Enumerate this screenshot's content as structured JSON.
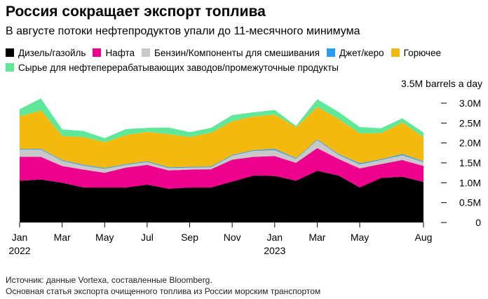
{
  "header": {
    "title": "Россия сокращает экспорт топлива",
    "subtitle": "В августе потоки нефтепродуктов упали до 11-месячного минимума"
  },
  "footer": {
    "source": "Источник: данные Vortexa, составленные Bloomberg.",
    "note": "Основная статья экспорта очищенного топлива из России морским транспортом"
  },
  "chart_data": {
    "type": "area",
    "stacked": true,
    "unit_label": "3.5M barrels a day",
    "x": [
      "2022-01",
      "2022-02",
      "2022-03",
      "2022-04",
      "2022-05",
      "2022-06",
      "2022-07",
      "2022-08",
      "2022-09",
      "2022-10",
      "2022-11",
      "2022-12",
      "2023-01",
      "2023-02",
      "2023-03",
      "2023-04",
      "2023-05",
      "2023-06",
      "2023-07",
      "2023-08"
    ],
    "x_ticks": [
      {
        "index": 0,
        "label": "Jan",
        "sub": "2022"
      },
      {
        "index": 2,
        "label": "Mar",
        "sub": ""
      },
      {
        "index": 4,
        "label": "May",
        "sub": ""
      },
      {
        "index": 6,
        "label": "Jul",
        "sub": ""
      },
      {
        "index": 8,
        "label": "Sep",
        "sub": ""
      },
      {
        "index": 10,
        "label": "Nov",
        "sub": ""
      },
      {
        "index": 12,
        "label": "Jan",
        "sub": "2023"
      },
      {
        "index": 14,
        "label": "Mar",
        "sub": ""
      },
      {
        "index": 16,
        "label": "May",
        "sub": ""
      },
      {
        "index": 19,
        "label": "Aug",
        "sub": ""
      }
    ],
    "y_ticks": [
      {
        "value": 0,
        "label": "0"
      },
      {
        "value": 0.5,
        "label": "0.5M"
      },
      {
        "value": 1.0,
        "label": "1.0M"
      },
      {
        "value": 1.5,
        "label": "1.5M"
      },
      {
        "value": 2.0,
        "label": "2.0M"
      },
      {
        "value": 2.5,
        "label": "2.5M"
      },
      {
        "value": 3.0,
        "label": "3.0M"
      }
    ],
    "ylim": [
      0,
      3.5
    ],
    "grid": false,
    "legend_position": "top",
    "series": [
      {
        "name": "Дизель/газойль",
        "color": "#000000",
        "values": [
          1.05,
          1.08,
          1.0,
          0.88,
          0.88,
          0.88,
          0.95,
          0.85,
          0.88,
          0.88,
          1.03,
          1.18,
          1.17,
          1.05,
          1.3,
          1.18,
          0.88,
          1.12,
          1.15,
          1.02
        ]
      },
      {
        "name": "Нафта",
        "color": "#ec008c",
        "values": [
          0.6,
          0.57,
          0.42,
          0.45,
          0.37,
          0.5,
          0.5,
          0.46,
          0.45,
          0.46,
          0.55,
          0.47,
          0.5,
          0.45,
          0.57,
          0.42,
          0.48,
          0.35,
          0.42,
          0.4
        ]
      },
      {
        "name": "Бензин/Компоненты для смешивания",
        "color": "#c8c8c8",
        "values": [
          0.18,
          0.18,
          0.13,
          0.1,
          0.1,
          0.07,
          0.07,
          0.06,
          0.05,
          0.05,
          0.1,
          0.15,
          0.15,
          0.1,
          0.2,
          0.1,
          0.1,
          0.1,
          0.12,
          0.1
        ]
      },
      {
        "name": "Джет/керо",
        "color": "#2e9cf0",
        "values": [
          0.02,
          0.02,
          0.02,
          0.02,
          0.02,
          0.02,
          0.02,
          0.02,
          0.02,
          0.02,
          0.02,
          0.02,
          0.03,
          0.02,
          0.02,
          0.02,
          0.03,
          0.02,
          0.03,
          0.02
        ]
      },
      {
        "name": "Горючее",
        "color": "#f4b90f",
        "values": [
          0.82,
          0.97,
          0.6,
          0.7,
          0.65,
          0.73,
          0.74,
          0.83,
          0.75,
          0.85,
          0.85,
          0.85,
          0.86,
          0.78,
          0.82,
          0.88,
          0.75,
          0.66,
          0.8,
          0.6
        ]
      },
      {
        "name": "Сырье для нефтеперерабатывающих заводов/промежуточные продукты",
        "color": "#5fe89a",
        "values": [
          0.18,
          0.3,
          0.17,
          0.15,
          0.1,
          0.15,
          0.1,
          0.17,
          0.12,
          0.12,
          0.15,
          0.1,
          0.12,
          0.03,
          0.19,
          0.18,
          0.16,
          0.12,
          0.1,
          0.12
        ]
      }
    ]
  }
}
